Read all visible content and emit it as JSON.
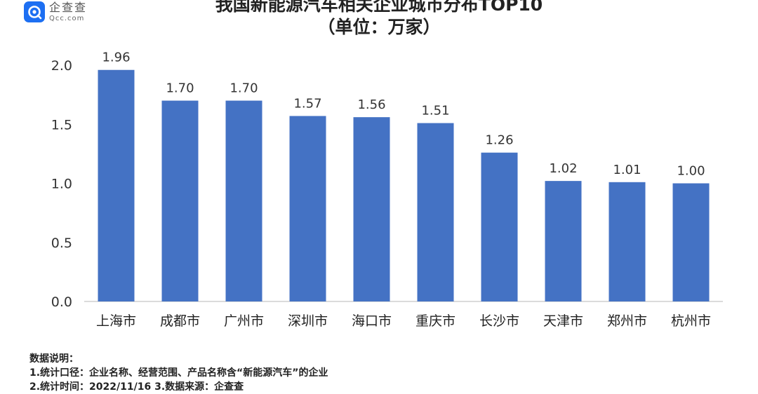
{
  "brand": {
    "name_cn": "企查查",
    "name_en": "Qcc.com",
    "icon": "qcc-logo-icon",
    "color": "#1d6ff2"
  },
  "chart_data": {
    "type": "bar",
    "title": "我国新能源汽车相关企业城市分布TOP10",
    "subtitle": "（单位：万家）",
    "categories": [
      "上海市",
      "成都市",
      "广州市",
      "深圳市",
      "海口市",
      "重庆市",
      "长沙市",
      "天津市",
      "郑州市",
      "杭州市"
    ],
    "values": [
      1.96,
      1.7,
      1.7,
      1.57,
      1.56,
      1.51,
      1.26,
      1.02,
      1.01,
      1.0
    ],
    "value_labels": [
      "1.96",
      "1.70",
      "1.70",
      "1.57",
      "1.56",
      "1.51",
      "1.26",
      "1.02",
      "1.01",
      "1.00"
    ],
    "yticks": [
      "0.0",
      "0.5",
      "1.0",
      "1.5",
      "2.0"
    ],
    "ylim": [
      0,
      2.0
    ],
    "bar_color": "#4472c4",
    "grid": false
  },
  "notes": {
    "heading": "数据说明：",
    "line1": "1.统计口径：企业名称、经营范围、产品名称含“新能源汽车”的企业",
    "line2": "2.统计时间：2022/11/16       3.数据来源：企查查"
  }
}
